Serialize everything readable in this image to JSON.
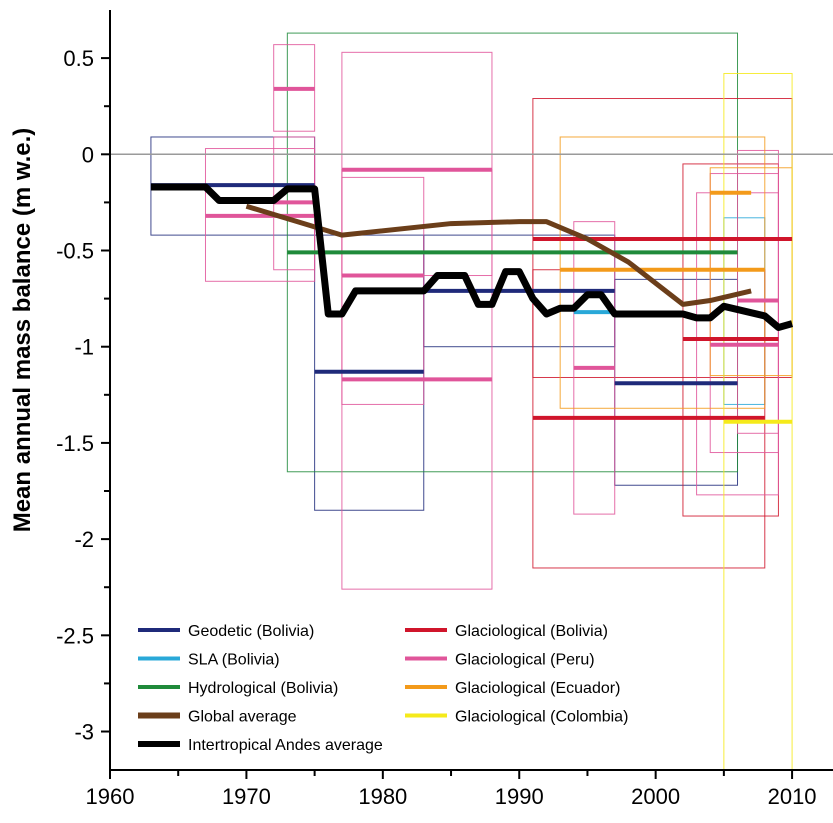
{
  "chart_data": {
    "type": "line",
    "title": "",
    "xlabel": "",
    "ylabel": "Mean annual mass balance (m w.e.)",
    "xlim": [
      1960,
      2013
    ],
    "ylim": [
      -3.2,
      0.75
    ],
    "xticks": [
      1960,
      1970,
      1980,
      1990,
      2000,
      2010
    ],
    "yticks": [
      0.5,
      0,
      -0.5,
      -1,
      -1.5,
      -2,
      -2.5,
      -3
    ],
    "ytick_labels": [
      "0.5",
      "0",
      "-0.5",
      "-1",
      "-1.5",
      "-2",
      "-2.5",
      "-3"
    ],
    "zero_line": true,
    "grid": false,
    "legend": {
      "placement": "bottom-left",
      "entries": [
        {
          "label": "Geodetic (Bolivia)",
          "color": "#1f2a7a"
        },
        {
          "label": "SLA (Bolivia)",
          "color": "#29a8d8"
        },
        {
          "label": "Hydrological (Bolivia)",
          "color": "#1f8a3a"
        },
        {
          "label": "Global average",
          "color": "#6b3e1a"
        },
        {
          "label": "Intertropical Andes average",
          "color": "#000000"
        },
        {
          "label": "Glaciological (Bolivia)",
          "color": "#d0152b"
        },
        {
          "label": "Glaciological (Peru)",
          "color": "#e0559a"
        },
        {
          "label": "Glaciological (Ecuador)",
          "color": "#f39a1a"
        },
        {
          "label": "Glaciological (Colombia)",
          "color": "#f5ea1a"
        }
      ]
    },
    "uncertainty_boxes": [
      {
        "category": "Geodetic (Bolivia)",
        "color": "#1f2a7a",
        "x": [
          1963,
          1975
        ],
        "y": [
          -0.42,
          0.09
        ]
      },
      {
        "category": "Geodetic (Bolivia)",
        "color": "#1f2a7a",
        "x": [
          1975,
          1983
        ],
        "y": [
          -1.85,
          -0.42
        ]
      },
      {
        "category": "Geodetic (Bolivia)",
        "color": "#1f2a7a",
        "x": [
          1983,
          1997
        ],
        "y": [
          -1.0,
          -0.42
        ]
      },
      {
        "category": "Geodetic (Bolivia)",
        "color": "#1f2a7a",
        "x": [
          1997,
          2006
        ],
        "y": [
          -1.72,
          -0.65
        ]
      },
      {
        "category": "SLA (Bolivia)",
        "color": "#29a8d8",
        "x": [
          2005,
          2008
        ],
        "y": [
          -1.3,
          -0.33
        ]
      },
      {
        "category": "Hydrological (Bolivia)",
        "color": "#1f8a3a",
        "x": [
          1973,
          2006
        ],
        "y": [
          -1.65,
          0.63
        ]
      },
      {
        "category": "Glaciological (Bolivia)",
        "color": "#d0152b",
        "x": [
          1991,
          2010
        ],
        "y": [
          -1.16,
          0.29
        ]
      },
      {
        "category": "Glaciological (Bolivia)",
        "color": "#d0152b",
        "x": [
          1991,
          2008
        ],
        "y": [
          -2.15,
          -0.6
        ]
      },
      {
        "category": "Glaciological (Bolivia)",
        "color": "#d0152b",
        "x": [
          2002,
          2009
        ],
        "y": [
          -1.88,
          -0.05
        ]
      },
      {
        "category": "Glaciological (Peru)",
        "color": "#e0559a",
        "x": [
          1967,
          1975
        ],
        "y": [
          -0.66,
          0.03
        ]
      },
      {
        "category": "Glaciological (Peru)",
        "color": "#e0559a",
        "x": [
          1972,
          1975
        ],
        "y": [
          0.12,
          0.57
        ]
      },
      {
        "category": "Glaciological (Peru)",
        "color": "#e0559a",
        "x": [
          1972,
          1975
        ],
        "y": [
          -0.6,
          0.09
        ]
      },
      {
        "category": "Glaciological (Peru)",
        "color": "#e0559a",
        "x": [
          1977,
          1988
        ],
        "y": [
          -0.63,
          0.53
        ]
      },
      {
        "category": "Glaciological (Peru)",
        "color": "#e0559a",
        "x": [
          1977,
          1988
        ],
        "y": [
          -2.26,
          -0.08
        ]
      },
      {
        "category": "Glaciological (Peru)",
        "color": "#e0559a",
        "x": [
          1977,
          1983
        ],
        "y": [
          -1.3,
          -0.12
        ]
      },
      {
        "category": "Glaciological (Peru)",
        "color": "#e0559a",
        "x": [
          1994,
          1997
        ],
        "y": [
          -1.87,
          -0.35
        ]
      },
      {
        "category": "Glaciological (Peru)",
        "color": "#e0559a",
        "x": [
          2003,
          2009
        ],
        "y": [
          -1.77,
          -0.2
        ]
      },
      {
        "category": "Glaciological (Peru)",
        "color": "#e0559a",
        "x": [
          2004,
          2009
        ],
        "y": [
          -1.55,
          -0.1
        ]
      },
      {
        "category": "Glaciological (Peru)",
        "color": "#e0559a",
        "x": [
          2006,
          2009
        ],
        "y": [
          -1.45,
          0.02
        ]
      },
      {
        "category": "Glaciological (Ecuador)",
        "color": "#f39a1a",
        "x": [
          1993,
          2008
        ],
        "y": [
          -1.32,
          0.09
        ]
      },
      {
        "category": "Glaciological (Ecuador)",
        "color": "#f39a1a",
        "x": [
          2004,
          2010
        ],
        "y": [
          -1.15,
          -0.07
        ]
      },
      {
        "category": "Glaciological (Colombia)",
        "color": "#f5ea1a",
        "x": [
          2005,
          2010
        ],
        "y": [
          -3.2,
          0.42
        ]
      }
    ],
    "segments": [
      {
        "category": "Geodetic (Bolivia)",
        "color": "#1f2a7a",
        "x": [
          1963,
          1975
        ],
        "y": -0.16
      },
      {
        "category": "Geodetic (Bolivia)",
        "color": "#1f2a7a",
        "x": [
          1975,
          1983
        ],
        "y": -1.13
      },
      {
        "category": "Geodetic (Bolivia)",
        "color": "#1f2a7a",
        "x": [
          1983,
          1997
        ],
        "y": -0.71
      },
      {
        "category": "Geodetic (Bolivia)",
        "color": "#1f2a7a",
        "x": [
          1997,
          2006
        ],
        "y": -1.19
      },
      {
        "category": "SLA (Bolivia)",
        "color": "#29a8d8",
        "x": [
          1994,
          1997
        ],
        "y": -0.82
      },
      {
        "category": "Hydrological (Bolivia)",
        "color": "#1f8a3a",
        "x": [
          1973,
          2006
        ],
        "y": -0.51
      },
      {
        "category": "Glaciological (Bolivia)",
        "color": "#d0152b",
        "x": [
          1991,
          2010
        ],
        "y": -0.44
      },
      {
        "category": "Glaciological (Bolivia)",
        "color": "#d0152b",
        "x": [
          1991,
          2008
        ],
        "y": -1.37
      },
      {
        "category": "Glaciological (Bolivia)",
        "color": "#d0152b",
        "x": [
          2002,
          2009
        ],
        "y": -0.96
      },
      {
        "category": "Glaciological (Peru)",
        "color": "#e0559a",
        "x": [
          1967,
          1975
        ],
        "y": -0.32
      },
      {
        "category": "Glaciological (Peru)",
        "color": "#e0559a",
        "x": [
          1972,
          1975
        ],
        "y": 0.34
      },
      {
        "category": "Glaciological (Peru)",
        "color": "#e0559a",
        "x": [
          1972,
          1975
        ],
        "y": -0.25
      },
      {
        "category": "Glaciological (Peru)",
        "color": "#e0559a",
        "x": [
          1977,
          1988
        ],
        "y": -0.08
      },
      {
        "category": "Glaciological (Peru)",
        "color": "#e0559a",
        "x": [
          1977,
          1988
        ],
        "y": -1.17
      },
      {
        "category": "Glaciological (Peru)",
        "color": "#e0559a",
        "x": [
          1977,
          1983
        ],
        "y": -0.63
      },
      {
        "category": "Glaciological (Peru)",
        "color": "#e0559a",
        "x": [
          1994,
          1997
        ],
        "y": -1.11
      },
      {
        "category": "Glaciological (Peru)",
        "color": "#e0559a",
        "x": [
          2004,
          2009
        ],
        "y": -0.99
      },
      {
        "category": "Glaciological (Peru)",
        "color": "#e0559a",
        "x": [
          2006,
          2009
        ],
        "y": -0.76
      },
      {
        "category": "Glaciological (Ecuador)",
        "color": "#f39a1a",
        "x": [
          1993,
          2008
        ],
        "y": -0.6
      },
      {
        "category": "Glaciological (Ecuador)",
        "color": "#f39a1a",
        "x": [
          2004,
          2007
        ],
        "y": -0.2
      },
      {
        "category": "Glaciological (Colombia)",
        "color": "#f5ea1a",
        "x": [
          2005,
          2010
        ],
        "y": -1.39
      }
    ],
    "series": [
      {
        "name": "Global average",
        "color": "#6b3e1a",
        "x": [
          1970,
          1977,
          1985,
          1990,
          1992,
          1995,
          1998,
          2002,
          2004,
          2007
        ],
        "y": [
          -0.27,
          -0.42,
          -0.36,
          -0.35,
          -0.35,
          -0.44,
          -0.56,
          -0.78,
          -0.76,
          -0.71
        ]
      },
      {
        "name": "Intertropical Andes average",
        "color": "#000000",
        "x": [
          1963,
          1967,
          1968,
          1972,
          1973,
          1975,
          1976,
          1977,
          1978,
          1983,
          1984,
          1986,
          1987,
          1988,
          1989,
          1990,
          1991,
          1992,
          1993,
          1994,
          1995,
          1996,
          1997,
          2002,
          2003,
          2004,
          2005,
          2008,
          2009,
          2010
        ],
        "y": [
          -0.17,
          -0.17,
          -0.24,
          -0.24,
          -0.18,
          -0.18,
          -0.83,
          -0.83,
          -0.71,
          -0.71,
          -0.63,
          -0.63,
          -0.78,
          -0.78,
          -0.61,
          -0.61,
          -0.75,
          -0.83,
          -0.8,
          -0.8,
          -0.73,
          -0.73,
          -0.83,
          -0.83,
          -0.85,
          -0.85,
          -0.79,
          -0.84,
          -0.9,
          -0.88
        ]
      }
    ]
  }
}
